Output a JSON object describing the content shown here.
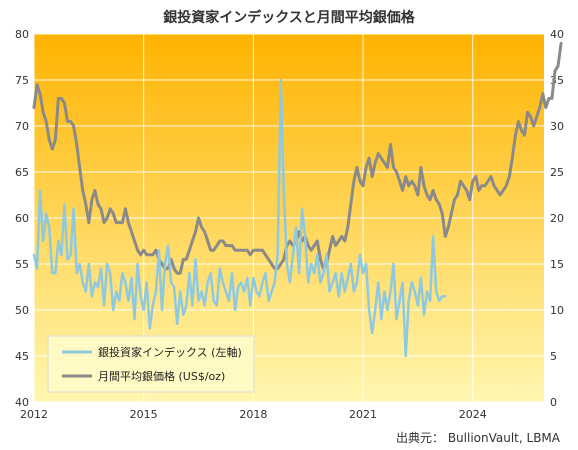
{
  "chart_data": {
    "type": "line",
    "title": "銀投資家インデックスと月間平均銀価格",
    "source": "出典元： BullionVault, LBMA",
    "x_axis": {
      "range": [
        2012,
        2025.95
      ],
      "ticks": [
        "2012",
        "2015",
        "2018",
        "2021",
        "2024"
      ],
      "tick_values": [
        2012,
        2015,
        2018,
        2021,
        2024
      ]
    },
    "y_left": {
      "range": [
        40,
        80
      ],
      "ticks": [
        "40",
        "45",
        "50",
        "55",
        "60",
        "65",
        "70",
        "75",
        "80"
      ],
      "tick_values": [
        40,
        45,
        50,
        55,
        60,
        65,
        70,
        75,
        80
      ]
    },
    "y_right": {
      "range": [
        0,
        40
      ],
      "ticks": [
        "0",
        "5",
        "10",
        "15",
        "20",
        "25",
        "30",
        "35",
        "40"
      ],
      "tick_values": [
        0,
        5,
        10,
        15,
        20,
        25,
        30,
        35,
        40
      ]
    },
    "grid": true,
    "legend_position": "bottom-left",
    "background_gradient": [
      "#ffb300",
      "#fff7b0"
    ],
    "series": [
      {
        "name": "銀投資家インデックス (左軸)",
        "axis": "left",
        "color": "#8ec9e0",
        "start": "2012-01",
        "interval": "monthly",
        "values": [
          56.0,
          54.5,
          63.0,
          57.5,
          60.5,
          59.0,
          54.0,
          54.0,
          57.5,
          56.0,
          61.5,
          55.5,
          56.0,
          61.0,
          54.0,
          55.0,
          53.0,
          52.0,
          55.0,
          51.5,
          53.0,
          52.5,
          54.5,
          50.5,
          55.0,
          54.0,
          50.0,
          52.0,
          51.0,
          54.0,
          53.0,
          51.0,
          53.5,
          49.0,
          55.0,
          51.5,
          50.0,
          53.0,
          48.0,
          50.5,
          52.0,
          56.5,
          50.0,
          55.0,
          57.0,
          53.0,
          52.5,
          48.5,
          52.0,
          49.5,
          50.5,
          54.0,
          50.5,
          55.5,
          51.0,
          52.0,
          50.5,
          53.0,
          54.0,
          51.0,
          50.5,
          54.5,
          53.0,
          52.0,
          51.0,
          54.0,
          50.0,
          52.5,
          53.0,
          52.0,
          53.5,
          50.5,
          53.5,
          52.0,
          51.5,
          53.0,
          54.0,
          51.0,
          52.0,
          53.0,
          56.0,
          75.0,
          63.0,
          55.0,
          53.0,
          56.0,
          59.0,
          54.0,
          61.0,
          58.0,
          53.0,
          55.0,
          54.0,
          56.0,
          53.0,
          54.0,
          56.0,
          52.0,
          53.0,
          54.0,
          51.5,
          54.0,
          52.0,
          53.5,
          55.0,
          52.0,
          53.0,
          56.0,
          54.0,
          55.0,
          50.0,
          47.5,
          50.0,
          53.0,
          49.0,
          52.0,
          50.0,
          52.0,
          55.0,
          49.0,
          51.0,
          53.0,
          45.0,
          51.0,
          53.0,
          52.0,
          50.5,
          53.5,
          49.5,
          52.0,
          51.0,
          58.0,
          52.0,
          51.0,
          51.5,
          51.5
        ]
      },
      {
        "name": "月間平均銀価格 (US$/oz)",
        "axis": "right",
        "color": "#8a8a8a",
        "start": "2012-01",
        "interval": "monthly",
        "values": [
          32.0,
          34.5,
          33.5,
          31.5,
          30.5,
          28.5,
          27.5,
          28.5,
          33.0,
          33.0,
          32.5,
          30.5,
          30.5,
          30.0,
          28.0,
          25.5,
          23.0,
          21.5,
          19.5,
          22.0,
          23.0,
          21.5,
          21.0,
          19.5,
          20.0,
          21.0,
          20.5,
          19.5,
          19.5,
          19.5,
          21.0,
          19.5,
          18.5,
          17.5,
          16.5,
          16.0,
          16.5,
          16.0,
          16.0,
          16.0,
          16.5,
          15.5,
          15.0,
          14.5,
          14.5,
          15.5,
          14.5,
          14.0,
          14.0,
          15.5,
          15.5,
          16.5,
          17.5,
          18.5,
          20.0,
          19.0,
          18.5,
          17.5,
          16.5,
          16.5,
          17.0,
          17.5,
          17.5,
          17.0,
          17.0,
          17.0,
          16.5,
          16.5,
          16.5,
          16.5,
          16.5,
          16.0,
          16.5,
          16.5,
          16.5,
          16.5,
          16.0,
          15.5,
          15.0,
          14.5,
          14.5,
          15.0,
          15.5,
          17.0,
          17.5,
          17.0,
          17.5,
          18.5,
          17.5,
          18.0,
          17.0,
          16.5,
          17.0,
          17.5,
          15.5,
          14.5,
          15.0,
          16.5,
          18.0,
          17.0,
          17.5,
          18.0,
          17.5,
          19.0,
          21.5,
          24.0,
          25.5,
          24.0,
          23.5,
          25.5,
          26.5,
          24.5,
          26.0,
          27.0,
          26.5,
          26.0,
          25.5,
          28.0,
          25.5,
          25.0,
          24.0,
          23.0,
          24.5,
          23.5,
          24.0,
          23.5,
          22.5,
          25.5,
          23.5,
          22.5,
          22.0,
          23.0,
          22.0,
          21.5,
          20.5,
          18.0,
          19.0,
          20.5,
          22.0,
          22.5,
          24.0,
          23.5,
          23.0,
          22.0,
          24.0,
          24.5,
          23.0,
          23.5,
          23.5,
          24.0,
          24.5,
          23.5,
          23.0,
          22.5,
          23.0,
          23.5,
          24.5,
          26.5,
          29.0,
          30.5,
          29.5,
          29.0,
          31.5,
          31.0,
          30.0,
          31.0,
          32.0,
          33.5,
          32.0,
          33.0,
          33.0,
          36.0,
          36.5,
          39.0
        ]
      }
    ]
  },
  "legend": {
    "items": [
      {
        "label": "銀投資家インデックス (左軸)",
        "color": "#8ec9e0"
      },
      {
        "label": "月間平均銀価格 (US$/oz)",
        "color": "#8a8a8a"
      }
    ]
  }
}
